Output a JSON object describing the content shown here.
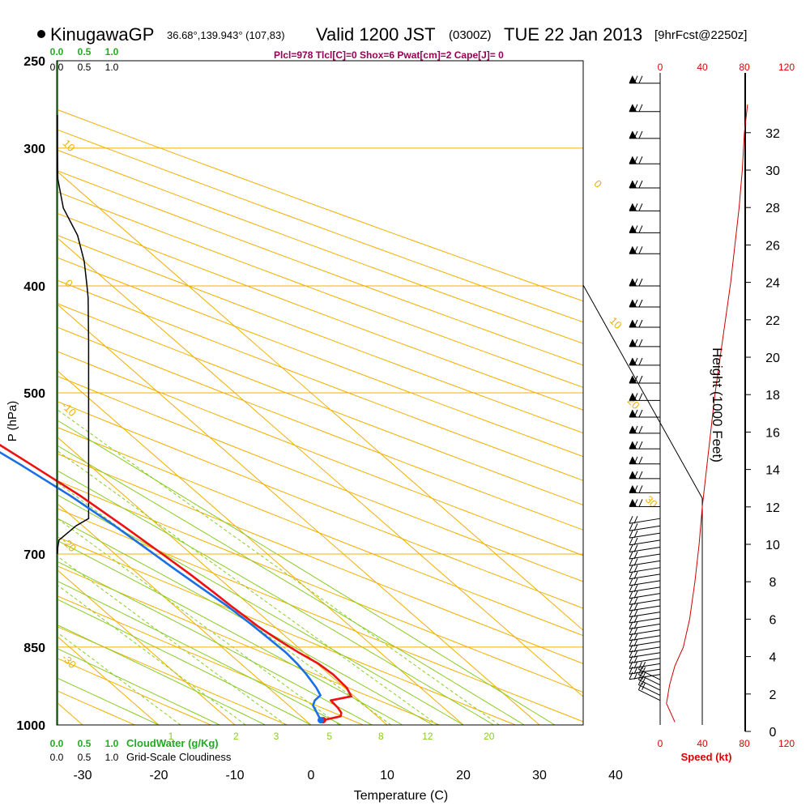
{
  "header": {
    "station": "KinugawaGP",
    "coords": "36.68°,139.943° (107,83)",
    "valid": "Valid 1200 JST",
    "zulu": "(0300Z)",
    "date": "TUE 22 Jan 2013",
    "fcst": "[9hrFcst@2250z]",
    "indices": "Plcl=978 Tlcl[C]=0 Shox=6 Pwat[cm]=2 Cape[J]= 0"
  },
  "colors": {
    "temperature": "#ee1111",
    "dewpoint": "#1a6ee6",
    "isotherm": "#f0b000",
    "dry_adiabat": "#f0b000",
    "moist_adiabat": "#88cc22",
    "mixing_ratio": "#88cc22",
    "cloud": "#000000",
    "cloud_axis": "#22aa22",
    "speed": "#cc0000",
    "label_green": "#22aa22",
    "label_red": "#dd0000",
    "label_indices": "#990055"
  },
  "chart_data": [
    {
      "type": "line",
      "subtype": "skew-t log-p sounding",
      "xlabel": "Temperature (C)",
      "ylabel": "P (hPa)",
      "x_ticks": [
        -30,
        -20,
        -10,
        0,
        10,
        20,
        30,
        40
      ],
      "y_ticks": [
        250,
        300,
        400,
        500,
        700,
        850,
        1000
      ],
      "xlim": [
        -33,
        36
      ],
      "ylim": [
        1000,
        250
      ],
      "isotherm_labels": [
        {
          "text": "10",
          "t": 10,
          "p": 300
        },
        {
          "text": "0",
          "t": 0,
          "p": 400
        },
        {
          "text": "-10",
          "t": -10,
          "p": 520
        },
        {
          "text": "-20",
          "t": -20,
          "p": 690
        },
        {
          "text": "-30",
          "t": -30,
          "p": 880
        },
        {
          "text": "0",
          "t": 0,
          "p": 325
        },
        {
          "text": "10",
          "t": 10,
          "p": 420
        },
        {
          "text": "20",
          "t": 20,
          "p": 480
        },
        {
          "text": "30",
          "t": 30,
          "p": 570
        }
      ],
      "mixing_ratio_labels": [
        "1",
        "2",
        "3",
        "5",
        "8",
        "12",
        "20"
      ],
      "series": [
        {
          "name": "Temperature",
          "points": [
            [
              2.3,
              990
            ],
            [
              5.2,
              982
            ],
            [
              5.8,
              975
            ],
            [
              6.1,
              965
            ],
            [
              6.3,
              950
            ],
            [
              9.6,
              942
            ],
            [
              10.3,
              925
            ],
            [
              10.5,
              900
            ],
            [
              10.2,
              880
            ],
            [
              9.3,
              860
            ],
            [
              8.6,
              840
            ],
            [
              7.9,
              815
            ],
            [
              7.4,
              780
            ],
            [
              7.2,
              760
            ],
            [
              6.8,
              730
            ],
            [
              6.2,
              700
            ],
            [
              5.3,
              660
            ],
            [
              4.2,
              620
            ],
            [
              2.4,
              580
            ],
            [
              0.4,
              540
            ],
            [
              -2.8,
              500
            ],
            [
              -6.0,
              460
            ],
            [
              -9.6,
              420
            ],
            [
              -13.4,
              380
            ],
            [
              -17.8,
              340
            ],
            [
              -22.5,
              305
            ],
            [
              -23.3,
              280
            ],
            [
              -22.9,
              260
            ]
          ]
        },
        {
          "name": "Dewpoint",
          "points": [
            [
              2.0,
              990
            ],
            [
              2.6,
              975
            ],
            [
              3.2,
              960
            ],
            [
              4.2,
              950
            ],
            [
              5.7,
              940
            ],
            [
              6.3,
              925
            ],
            [
              7.0,
              900
            ],
            [
              7.4,
              880
            ],
            [
              7.6,
              860
            ],
            [
              7.5,
              840
            ],
            [
              7.3,
              810
            ],
            [
              6.9,
              780
            ],
            [
              6.2,
              750
            ],
            [
              5.5,
              720
            ],
            [
              5.1,
              700
            ],
            [
              4.2,
              660
            ],
            [
              2.9,
              620
            ],
            [
              1.0,
              580
            ],
            [
              -1.4,
              540
            ],
            [
              -4.5,
              500
            ],
            [
              -8.3,
              460
            ],
            [
              -12.4,
              420
            ],
            [
              -17.0,
              380
            ],
            [
              -21.8,
              340
            ],
            [
              -26.8,
              305
            ],
            [
              -29.2,
              285
            ],
            [
              -29.9,
              270
            ],
            [
              -29.5,
              260
            ]
          ]
        }
      ]
    },
    {
      "type": "line",
      "name": "CloudWater (g/Kg)",
      "legend_label": "CloudWater (g/Kg)",
      "secondary_label": "Grid-Scale Cloudiness",
      "x_ticks_green": [
        "0.0",
        "0.5",
        "1.0"
      ],
      "x_ticks_black": [
        "0.0",
        "0.5",
        "1.0"
      ],
      "xlim": [
        0,
        1
      ],
      "cloudiness_points": [
        [
          0.01,
          700
        ],
        [
          0.02,
          690
        ],
        [
          0.04,
          680
        ],
        [
          0.35,
          660
        ],
        [
          0.58,
          650
        ],
        [
          0.58,
          600
        ],
        [
          0.58,
          500
        ],
        [
          0.58,
          450
        ],
        [
          0.57,
          410
        ],
        [
          0.55,
          400
        ],
        [
          0.5,
          380
        ],
        [
          0.38,
          360
        ],
        [
          0.12,
          340
        ],
        [
          0.02,
          320
        ],
        [
          0.01,
          300
        ],
        [
          0.01,
          280
        ]
      ]
    },
    {
      "type": "line",
      "name": "Speed (kt)",
      "xlabel": "Speed (kt)",
      "ylabel": "Height (1000 Feet)",
      "x_ticks": [
        0,
        40,
        80,
        120
      ],
      "y_ticks": [
        0,
        2,
        4,
        6,
        8,
        10,
        12,
        14,
        16,
        18,
        20,
        22,
        24,
        26,
        28,
        30,
        32
      ],
      "xlim": [
        0,
        120
      ],
      "ylim": [
        0,
        34
      ],
      "speed_points": [
        [
          14,
          0.5
        ],
        [
          10,
          1.0
        ],
        [
          6,
          1.5
        ],
        [
          9,
          2.5
        ],
        [
          14,
          3.5
        ],
        [
          22,
          4.5
        ],
        [
          28,
          6
        ],
        [
          33,
          8
        ],
        [
          37,
          10
        ],
        [
          40,
          12
        ],
        [
          44,
          14
        ],
        [
          48,
          16
        ],
        [
          52,
          18
        ],
        [
          57,
          20
        ],
        [
          62,
          22
        ],
        [
          67,
          24
        ],
        [
          71,
          26
        ],
        [
          75,
          28
        ],
        [
          78,
          30
        ],
        [
          80,
          32
        ],
        [
          83,
          33.5
        ]
      ]
    }
  ]
}
